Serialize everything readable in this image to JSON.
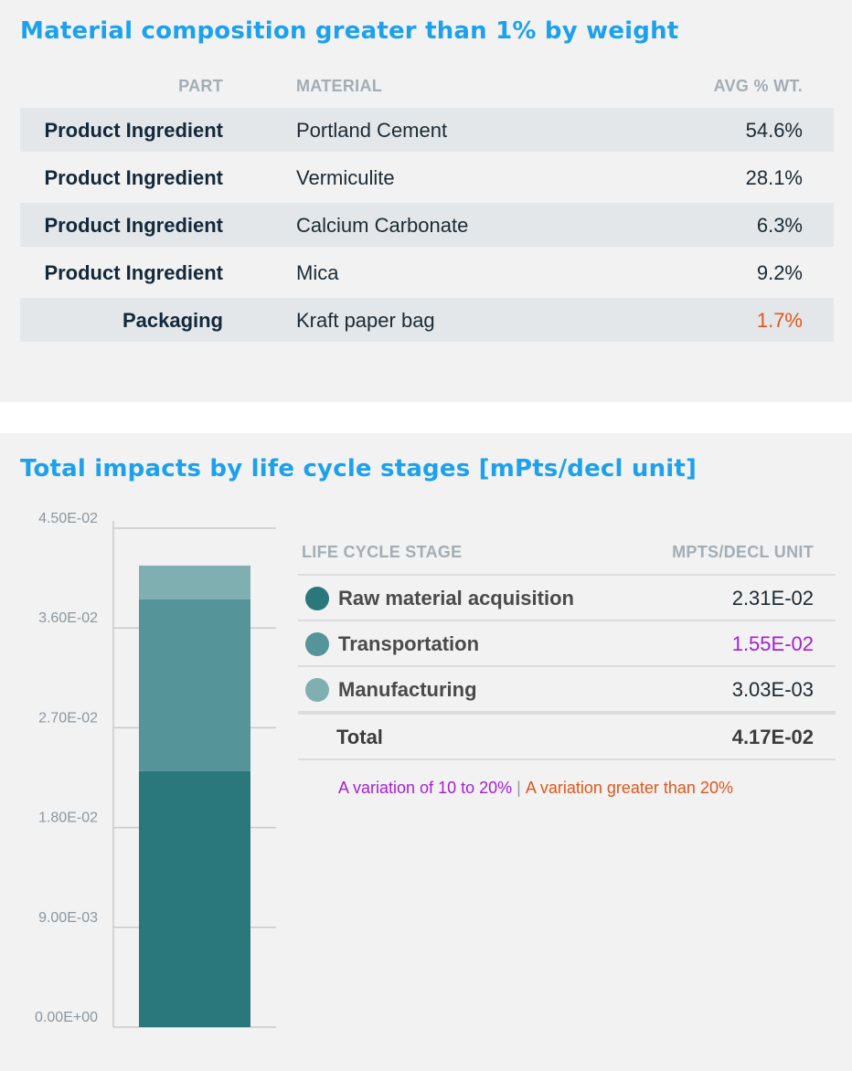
{
  "material_section": {
    "title": "Material composition greater than 1% by weight",
    "headers": {
      "part": "PART",
      "material": "MATERIAL",
      "avg": "AVG % WT."
    },
    "rows": [
      {
        "part": "Product Ingredient",
        "material": "Portland Cement",
        "avg": "54.6%"
      },
      {
        "part": "Product Ingredient",
        "material": "Vermiculite",
        "avg": "28.1%"
      },
      {
        "part": "Product Ingredient",
        "material": "Calcium Carbonate",
        "avg": "6.3%"
      },
      {
        "part": "Product Ingredient",
        "material": "Mica",
        "avg": "9.2%"
      },
      {
        "part": "Packaging",
        "material": "Kraft paper bag",
        "avg": "1.7%"
      }
    ]
  },
  "impacts_section": {
    "title": "Total impacts by life cycle stages [mPts/decl unit]",
    "table_headers": {
      "stage": "LIFE CYCLE STAGE",
      "value": "MPTS/DECL UNIT"
    },
    "stages": [
      {
        "name": "Raw material acquisition",
        "value": "2.31E-02"
      },
      {
        "name": "Transportation",
        "value": "1.55E-02"
      },
      {
        "name": "Manufacturing",
        "value": "3.03E-03"
      }
    ],
    "total": {
      "label": "Total",
      "value": "4.17E-02"
    },
    "variation_note": {
      "mid": "A variation of 10 to 20%",
      "separator": "|",
      "high": "A variation greater than 20%"
    }
  },
  "colors": {
    "title_blue": "#1da1ec",
    "raw_material": "#2a777c",
    "transportation": "#559498",
    "manufacturing": "#80afb2",
    "variation_mid": "#a51fd6",
    "variation_high": "#e0561b"
  },
  "chart_data": {
    "type": "bar",
    "stacked": true,
    "title": "Total impacts by life cycle stages [mPts/decl unit]",
    "categories": [
      ""
    ],
    "series": [
      {
        "name": "Raw material acquisition",
        "values": [
          0.0231
        ],
        "color": "#2a777c"
      },
      {
        "name": "Transportation",
        "values": [
          0.0155
        ],
        "color": "#559498"
      },
      {
        "name": "Manufacturing",
        "values": [
          0.00303
        ],
        "color": "#80afb2"
      }
    ],
    "ylim": [
      0,
      0.045
    ],
    "yticks": [
      "0.00E+00",
      "9.00E-03",
      "1.80E-02",
      "2.70E-02",
      "3.60E-02",
      "4.50E-02"
    ],
    "ytick_values": [
      0,
      0.009,
      0.018,
      0.027,
      0.036,
      0.045
    ],
    "grid": true
  }
}
